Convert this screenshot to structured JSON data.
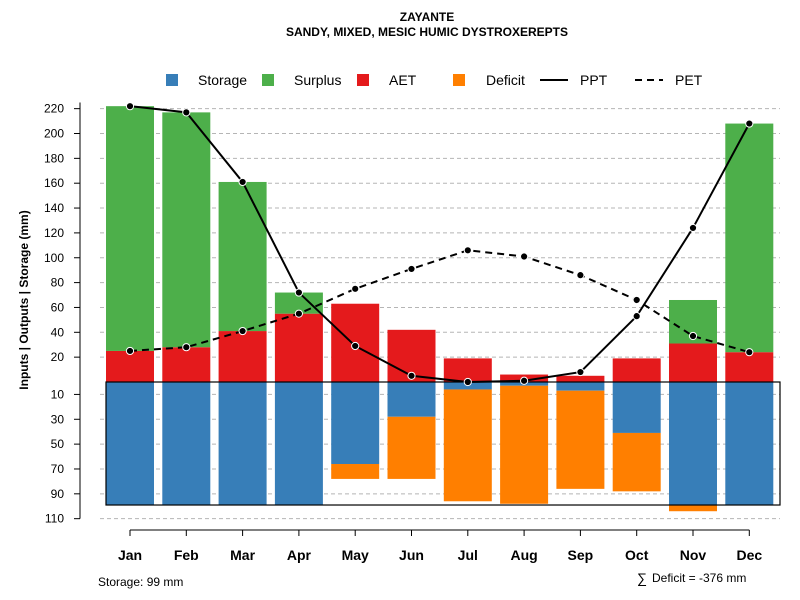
{
  "chart_data": {
    "type": "bar",
    "title": "ZAYANTE",
    "subtitle": "SANDY, MIXED, MESIC HUMIC DYSTROXEREPTS",
    "ylabel": "Inputs | Outputs | Storage    (mm)",
    "xlabel": "",
    "categories": [
      "Jan",
      "Feb",
      "Mar",
      "Apr",
      "May",
      "Jun",
      "Jul",
      "Aug",
      "Sep",
      "Oct",
      "Nov",
      "Dec"
    ],
    "ylim_upper": [
      0,
      230
    ],
    "ylim_lower": [
      0,
      110
    ],
    "upper_ticks": [
      20,
      40,
      60,
      80,
      100,
      120,
      140,
      160,
      180,
      200,
      220
    ],
    "lower_ticks": [
      10,
      30,
      50,
      70,
      90,
      110
    ],
    "legend": [
      {
        "label": "Storage",
        "kind": "box",
        "color": "#377EB8"
      },
      {
        "label": "Surplus",
        "kind": "box",
        "color": "#4DAF4A"
      },
      {
        "label": "AET",
        "kind": "box",
        "color": "#E41A1C"
      },
      {
        "label": "Deficit",
        "kind": "box",
        "color": "#FF7F00"
      },
      {
        "label": "PPT",
        "kind": "solid",
        "color": "#000000"
      },
      {
        "label": "PET",
        "kind": "dashed",
        "color": "#000000"
      }
    ],
    "colors": {
      "storage": "#377EB8",
      "surplus": "#4DAF4A",
      "aet": "#E41A1C",
      "deficit": "#FF7F00",
      "line": "#000000"
    },
    "series": [
      {
        "name": "AET",
        "values": [
          25,
          28,
          41,
          55,
          63,
          42,
          19,
          6,
          5,
          19,
          31,
          24
        ]
      },
      {
        "name": "Surplus",
        "values": [
          197,
          189,
          120,
          17,
          0,
          0,
          0,
          0,
          0,
          0,
          35,
          184
        ]
      },
      {
        "name": "Storage",
        "values": [
          99,
          99,
          99,
          99,
          66,
          28,
          6,
          3,
          7,
          41,
          99,
          99
        ]
      },
      {
        "name": "Deficit",
        "values": [
          0,
          0,
          0,
          0,
          12,
          50,
          90,
          95,
          79,
          47,
          5,
          0
        ]
      },
      {
        "name": "PPT",
        "values": [
          222,
          217,
          161,
          72,
          29,
          5,
          0,
          1,
          8,
          53,
          124,
          208
        ]
      },
      {
        "name": "PET",
        "values": [
          25,
          28,
          41,
          55,
          75,
          91,
          106,
          101,
          86,
          66,
          37,
          24
        ]
      }
    ],
    "storage_capacity": 99
  },
  "footer": {
    "storage_note": "Storage: 99 mm",
    "deficit_symbol": "∑",
    "deficit_note": "Deficit = -376 mm"
  }
}
